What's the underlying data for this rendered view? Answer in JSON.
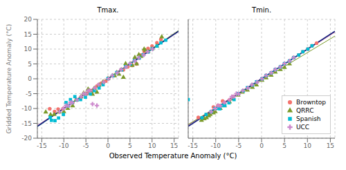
{
  "chart_data": [
    {
      "type": "scatter",
      "title": "Tmax.",
      "x_label": "Observed Temperature Anomaly (°C)",
      "y_label": "Gridded Temperature Anomaly (°C)",
      "xlim": [
        -16,
        16
      ],
      "ylim": [
        -20,
        20
      ],
      "xticks": [
        -15,
        -10,
        -5,
        0,
        5,
        10,
        15
      ],
      "yticks": [
        -20,
        -15,
        -10,
        -5,
        0,
        5,
        10,
        15,
        20
      ],
      "grid": true,
      "series": [
        {
          "name": "Browntop",
          "color": "#f4736e",
          "marker": "circle",
          "x": [
            -13.2,
            -12.1,
            -11.3,
            -10.2,
            -9.1,
            -8.0,
            -7.2,
            -6.1,
            -5.0,
            -4.2,
            -3.0,
            -2.1,
            -1.0,
            0.1,
            1.2,
            2.1,
            3.0,
            4.1,
            5.2,
            6.0,
            7.1,
            8.2,
            9.1,
            10.0,
            11.1,
            12.0,
            6.5,
            5.5,
            4.5,
            3.5,
            -0.5,
            -1.5,
            -2.5,
            -3.5,
            -4.5,
            7.5,
            8.5
          ],
          "values": [
            -10.1,
            -11.0,
            -10.2,
            -10.1,
            -9.0,
            -8.1,
            -7.0,
            -6.2,
            -5.1,
            -4.0,
            -3.2,
            -2.0,
            -1.1,
            0.0,
            1.0,
            2.2,
            3.1,
            4.0,
            5.1,
            6.2,
            7.0,
            9.1,
            10.2,
            11.0,
            12.1,
            13.2,
            5.0,
            4.5,
            4.0,
            3.0,
            -0.8,
            -1.5,
            -2.5,
            -4.0,
            -4.8,
            8.0,
            9.5
          ]
        },
        {
          "name": "QRRC",
          "color": "#7a9a2a",
          "marker": "triangle",
          "x": [
            -14.1,
            -13.0,
            -12.2,
            -11.1,
            -10.0,
            -9.1,
            -8.0,
            -7.2,
            -6.1,
            -5.0,
            -4.2,
            -3.1,
            -2.0,
            -1.1,
            0.0,
            1.1,
            2.0,
            3.1,
            4.0,
            5.2,
            6.1,
            7.0,
            8.2,
            9.1,
            10.0,
            11.1,
            12.2,
            -5.5,
            -4.5,
            -3.5,
            -2.5,
            1.5,
            2.5,
            3.5,
            5.5,
            6.5,
            7.5,
            8.5
          ],
          "values": [
            -11.2,
            -12.1,
            -12.0,
            -11.2,
            -11.1,
            -10.0,
            -9.1,
            -7.2,
            -6.0,
            -5.1,
            -4.0,
            -3.2,
            -2.1,
            -1.0,
            0.1,
            1.0,
            2.1,
            3.0,
            5.1,
            5.0,
            7.2,
            8.1,
            10.0,
            9.2,
            10.1,
            11.0,
            14.1,
            -4.8,
            -3.5,
            -5.2,
            -4.5,
            1.0,
            1.5,
            0.5,
            4.5,
            5.0,
            7.5,
            9.5
          ]
        },
        {
          "name": "Spanish",
          "color": "#00bcd4",
          "marker": "square",
          "x": [
            -13.1,
            -12.0,
            -11.2,
            -10.1,
            -9.0,
            -8.1,
            -7.0,
            -6.2,
            -5.1,
            -4.0,
            -3.1,
            -2.0,
            -1.1,
            0.0,
            1.1,
            2.0,
            3.1,
            4.0,
            5.1,
            6.0,
            7.1,
            8.0,
            9.1,
            10.0,
            11.1,
            12.0,
            13.1,
            -12.8,
            -9.5,
            -8.5,
            -7.5
          ],
          "values": [
            -13.0,
            -14.1,
            -13.2,
            -12.0,
            -9.1,
            -8.0,
            -7.1,
            -7.0,
            -6.2,
            -5.1,
            -4.0,
            -3.1,
            -2.0,
            0.1,
            1.0,
            2.1,
            3.0,
            4.1,
            5.0,
            6.1,
            7.0,
            8.1,
            9.0,
            10.1,
            11.0,
            12.1,
            13.0,
            -14.0,
            -8.0,
            -7.0,
            -6.0
          ]
        },
        {
          "name": "UCC",
          "color": "#cc88cc",
          "marker": "plus",
          "x": [
            -11.0,
            -10.1,
            -9.0,
            -8.1,
            -7.0,
            -6.1,
            -5.0,
            -4.1,
            -3.0,
            -2.1,
            -1.0,
            0.1,
            1.0,
            2.1,
            3.0,
            4.1,
            5.0,
            6.1,
            7.0,
            8.1,
            9.0,
            10.1,
            -9.5,
            -8.5,
            -5.5,
            -4.5,
            -3.5,
            -2.5
          ],
          "values": [
            -11.1,
            -10.0,
            -9.1,
            -8.0,
            -7.1,
            -6.0,
            -5.1,
            -4.0,
            -3.1,
            -2.0,
            -1.1,
            0.0,
            1.1,
            2.0,
            3.1,
            4.0,
            5.1,
            6.0,
            7.1,
            8.0,
            9.1,
            10.0,
            -9.0,
            -8.0,
            -5.0,
            -4.0,
            -8.5,
            -9.0
          ]
        },
        {
          "type": "line",
          "color": "#f4736e",
          "x": [
            -16,
            16
          ],
          "values": [
            -15.77,
            16.07
          ]
        },
        {
          "type": "line",
          "color": "#7a9a2a",
          "x": [
            -16,
            16
          ],
          "values": [
            -16.06,
            16.26
          ]
        },
        {
          "type": "line",
          "color": "#00bcd4",
          "x": [
            -16,
            16
          ],
          "values": [
            -16.13,
            16.03
          ]
        },
        {
          "type": "line",
          "color": "#cc88cc",
          "x": [
            -16,
            16
          ],
          "values": [
            -15.79,
            15.89
          ]
        },
        {
          "type": "line",
          "color": "#1a237e",
          "x": [
            -16,
            16
          ],
          "values": [
            -16,
            16
          ]
        }
      ]
    },
    {
      "type": "scatter",
      "title": "Tmin.",
      "xlim": [
        -16,
        16
      ],
      "ylim": [
        -20,
        20
      ],
      "xticks": [
        -15,
        -10,
        -5,
        0,
        5,
        10,
        15
      ],
      "yticks": [
        -20,
        -15,
        -10,
        -5,
        0,
        5,
        10,
        15,
        20
      ],
      "grid": true,
      "tick_labels": "x",
      "legend": "lower right",
      "series": [
        {
          "name": "Browntop",
          "color": "#f4736e",
          "marker": "circle",
          "x": [
            -13.8,
            -12.0,
            -11.0,
            -10.1,
            -9.0,
            -8.1,
            -7.0,
            -6.2,
            -5.1,
            -4.0,
            -3.1,
            -2.0,
            -1.0,
            0.1,
            1.0,
            2.1,
            3.0,
            4.1,
            5.0,
            6.1,
            7.0,
            8.1,
            9.0,
            10.1,
            11.0,
            12.0,
            -10.5,
            -9.5,
            -8.5
          ],
          "values": [
            -13.0,
            -12.0,
            -11.1,
            -10.0,
            -9.1,
            -8.0,
            -7.1,
            -6.0,
            -5.1,
            -4.0,
            -3.1,
            -2.0,
            -1.1,
            0.0,
            1.1,
            2.0,
            3.1,
            4.0,
            5.1,
            6.0,
            7.1,
            8.0,
            9.1,
            10.0,
            11.1,
            12.0,
            -9.5,
            -9.0,
            -7.5
          ]
        },
        {
          "name": "QRRC",
          "color": "#7a9a2a",
          "marker": "triangle",
          "x": [
            -13.1,
            -12.0,
            -11.2,
            -10.1,
            -9.0,
            -8.1,
            -7.0,
            -6.2,
            -5.1,
            -4.2,
            -3.1,
            -2.0,
            -1.1,
            0.1,
            1.0,
            2.1,
            3.0,
            4.1,
            5.0,
            6.1,
            -12.5,
            -11.5,
            -10.5
          ],
          "values": [
            -14.0,
            -13.1,
            -12.0,
            -11.1,
            -10.0,
            -9.1,
            -7.8,
            -6.8,
            -5.5,
            -4.5,
            -3.8,
            -2.9,
            -2.1,
            -0.5,
            0.3,
            1.2,
            2.2,
            3.1,
            3.8,
            5.0,
            -13.5,
            -12.5,
            -11.5
          ]
        },
        {
          "name": "Spanish",
          "color": "#00bcd4",
          "marker": "square",
          "x": [
            -16.0,
            -13.0,
            -12.1,
            -11.0,
            -10.2,
            -9.1,
            -8.0,
            -7.1,
            -6.0,
            -5.1,
            -4.0,
            -3.1,
            -2.0,
            -1.1,
            0.1,
            1.0,
            2.1,
            3.0,
            4.1,
            5.0,
            6.1,
            7.0,
            8.1,
            9.0,
            10.1,
            11.0,
            -9.5,
            -8.5
          ],
          "values": [
            -7.0,
            -13.1,
            -12.0,
            -11.1,
            -10.0,
            -10.1,
            -9.0,
            -8.1,
            -7.0,
            -5.0,
            -4.1,
            -3.0,
            -2.1,
            -1.0,
            0.0,
            1.1,
            2.0,
            3.1,
            4.0,
            5.1,
            6.0,
            7.1,
            8.0,
            9.1,
            10.0,
            11.1,
            -10.0,
            -9.0
          ]
        },
        {
          "name": "UCC",
          "color": "#cc88cc",
          "marker": "plus",
          "x": [
            -11.0,
            -10.1,
            -9.0,
            -8.1,
            -7.0,
            -6.1,
            -5.0,
            -4.1,
            -3.0,
            -2.1,
            -1.0,
            0.1,
            1.0,
            2.1,
            3.0,
            4.1,
            5.0,
            6.1,
            7.0,
            -9.5,
            -6.5,
            -5.5
          ],
          "values": [
            -11.1,
            -10.0,
            -9.1,
            -8.0,
            -7.1,
            -6.0,
            -5.1,
            -4.0,
            -3.1,
            -2.0,
            -1.1,
            0.0,
            1.1,
            2.0,
            3.1,
            4.0,
            5.1,
            6.0,
            7.1,
            -9.0,
            -6.0,
            -5.0
          ]
        },
        {
          "type": "line",
          "color": "#f4736e",
          "x": [
            -16,
            16
          ],
          "values": [
            -15.5,
            15.7
          ]
        },
        {
          "type": "line",
          "color": "#7a9a2a",
          "x": [
            -16,
            16
          ],
          "values": [
            -15.38,
            14.38
          ]
        },
        {
          "type": "line",
          "color": "#00bcd4",
          "x": [
            -16,
            16
          ],
          "values": [
            -15.79,
            15.89
          ]
        },
        {
          "type": "line",
          "color": "#cc88cc",
          "x": [
            -16,
            16
          ],
          "values": [
            -15.76,
            15.76
          ]
        },
        {
          "type": "line",
          "color": "#1a237e",
          "x": [
            -16,
            16
          ],
          "values": [
            -16,
            16
          ]
        }
      ]
    }
  ]
}
